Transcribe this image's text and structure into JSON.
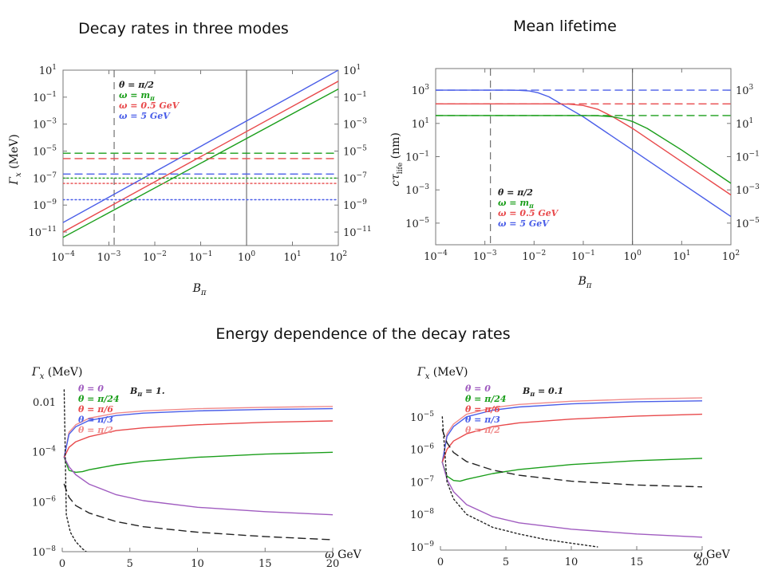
{
  "headings": {
    "decay": "Decay rates in three modes",
    "lifetime": "Mean lifetime",
    "energy": "Energy dependence of the decay rates"
  },
  "colors": {
    "green": "#1a9e1a",
    "red": "#e8494b",
    "blue": "#4a5ee8",
    "purple": "#a05cc0",
    "pink": "#f08a8a",
    "black": "#222222",
    "gray": "#777777"
  },
  "chart_data": [
    {
      "id": "decay",
      "type": "line",
      "scale": {
        "x": "log",
        "y": "log"
      },
      "xlabel": "B_π",
      "ylabel": "Γ_x (MeV)",
      "xlim": [
        0.0001,
        100
      ],
      "ylim": [
        1e-12,
        10
      ],
      "xticks": [
        {
          "v": 0.0001,
          "m": "10",
          "e": "−4"
        },
        {
          "v": 0.001,
          "m": "10",
          "e": "−3"
        },
        {
          "v": 0.01,
          "m": "10",
          "e": "−2"
        },
        {
          "v": 0.1,
          "m": "10",
          "e": "−1"
        },
        {
          "v": 1,
          "m": "10",
          "e": "0"
        },
        {
          "v": 10,
          "m": "10",
          "e": "1"
        },
        {
          "v": 100,
          "m": "10",
          "e": "2"
        }
      ],
      "yticks": [
        {
          "v": 10,
          "m": "10",
          "e": "1"
        },
        {
          "v": 0.1,
          "m": "10",
          "e": "−1"
        },
        {
          "v": 0.001,
          "m": "10",
          "e": "−3"
        },
        {
          "v": 1e-05,
          "m": "10",
          "e": "−5"
        },
        {
          "v": 1e-07,
          "m": "10",
          "e": "−7"
        },
        {
          "v": 1e-09,
          "m": "10",
          "e": "−9"
        },
        {
          "v": 1e-11,
          "m": "10",
          "e": "−11"
        }
      ],
      "right_ticks": true,
      "vlines": [
        {
          "x": 0.0013,
          "style": "dashed"
        },
        {
          "x": 1,
          "style": "solid"
        }
      ],
      "legend": [
        {
          "text": "θ = π/2",
          "color": "black"
        },
        {
          "text": "ω = m",
          "sub": "π",
          "color": "green"
        },
        {
          "text": "ω = 0.5 GeV",
          "color": "red"
        },
        {
          "text": "ω = 5 GeV",
          "color": "blue"
        }
      ],
      "series": [
        {
          "color": "blue",
          "style": "solid",
          "x": [
            0.0001,
            100
          ],
          "y": [
            5e-11,
            10
          ]
        },
        {
          "color": "red",
          "style": "solid",
          "x": [
            0.0001,
            100
          ],
          "y": [
            1e-11,
            1.5
          ]
        },
        {
          "color": "green",
          "style": "solid",
          "x": [
            0.0001,
            100
          ],
          "y": [
            4e-12,
            0.4
          ]
        },
        {
          "color": "green",
          "style": "dashed",
          "x": [
            0.0001,
            100
          ],
          "y": [
            7e-06,
            7e-06
          ]
        },
        {
          "color": "red",
          "style": "dashed",
          "x": [
            0.0001,
            100
          ],
          "y": [
            2.8e-06,
            2.8e-06
          ]
        },
        {
          "color": "blue",
          "style": "dashed",
          "x": [
            0.0001,
            100
          ],
          "y": [
            2e-07,
            2e-07
          ]
        },
        {
          "color": "green",
          "style": "dotted",
          "x": [
            0.0001,
            100
          ],
          "y": [
            1e-07,
            1e-07
          ]
        },
        {
          "color": "red",
          "style": "dotted",
          "x": [
            0.0001,
            100
          ],
          "y": [
            4e-08,
            4e-08
          ]
        },
        {
          "color": "blue",
          "style": "dotted",
          "x": [
            0.0001,
            100
          ],
          "y": [
            2.5e-09,
            2.5e-09
          ]
        }
      ]
    },
    {
      "id": "lifetime",
      "type": "line",
      "scale": {
        "x": "log",
        "y": "log"
      },
      "xlabel": "B_π",
      "ylabel": "cτ_life (nm)",
      "xlim": [
        0.0001,
        100
      ],
      "ylim": [
        5e-07,
        20000
      ],
      "xticks": [
        {
          "v": 0.0001,
          "m": "10",
          "e": "−4"
        },
        {
          "v": 0.001,
          "m": "10",
          "e": "−3"
        },
        {
          "v": 0.01,
          "m": "10",
          "e": "−2"
        },
        {
          "v": 0.1,
          "m": "10",
          "e": "−1"
        },
        {
          "v": 1,
          "m": "10",
          "e": "0"
        },
        {
          "v": 10,
          "m": "10",
          "e": "1"
        },
        {
          "v": 100,
          "m": "10",
          "e": "2"
        }
      ],
      "yticks": [
        {
          "v": 1000,
          "m": "10",
          "e": "3"
        },
        {
          "v": 10,
          "m": "10",
          "e": "1"
        },
        {
          "v": 0.1,
          "m": "10",
          "e": "−1"
        },
        {
          "v": 0.001,
          "m": "10",
          "e": "−3"
        },
        {
          "v": 1e-05,
          "m": "10",
          "e": "−5"
        }
      ],
      "right_ticks": true,
      "vlines": [
        {
          "x": 0.0013,
          "style": "dashed"
        },
        {
          "x": 1,
          "style": "solid"
        }
      ],
      "legend": [
        {
          "text": "θ = π/2",
          "color": "black"
        },
        {
          "text": "ω = m",
          "sub": "π",
          "color": "green"
        },
        {
          "text": "ω = 0.5 GeV",
          "color": "red"
        },
        {
          "text": "ω = 5 GeV",
          "color": "blue"
        }
      ],
      "series": [
        {
          "color": "blue",
          "style": "dashed",
          "x": [
            0.0001,
            100
          ],
          "y": [
            1000,
            1000
          ]
        },
        {
          "color": "red",
          "style": "dashed",
          "x": [
            0.0001,
            100
          ],
          "y": [
            150,
            150
          ]
        },
        {
          "color": "green",
          "style": "dashed",
          "x": [
            0.0001,
            100
          ],
          "y": [
            30,
            30
          ]
        },
        {
          "color": "blue",
          "style": "solid",
          "x": [
            0.0001,
            0.003,
            0.005,
            0.008,
            0.012,
            0.02,
            0.04,
            0.1,
            1,
            10,
            100
          ],
          "y": [
            1000,
            1000,
            980,
            900,
            700,
            400,
            120,
            25,
            0.25,
            0.0025,
            2.5e-05
          ]
        },
        {
          "color": "red",
          "style": "solid",
          "x": [
            0.0001,
            0.02,
            0.05,
            0.1,
            0.2,
            0.4,
            1,
            10,
            100
          ],
          "y": [
            150,
            150,
            145,
            120,
            70,
            25,
            5,
            0.05,
            0.0005
          ]
        },
        {
          "color": "green",
          "style": "solid",
          "x": [
            0.0001,
            0.1,
            0.2,
            0.4,
            0.7,
            1,
            2,
            10,
            100
          ],
          "y": [
            30,
            30,
            29,
            25,
            18,
            13,
            5,
            0.25,
            0.0025
          ]
        }
      ]
    },
    {
      "id": "energy-b1",
      "type": "line",
      "scale": {
        "x": "linear",
        "y": "log"
      },
      "xlabel": "ω GeV",
      "ylabel": "Γ_x (MeV)",
      "xlim": [
        0,
        20
      ],
      "ylim": [
        1e-08,
        0.05
      ],
      "xticks": [
        {
          "v": 0,
          "m": "0"
        },
        {
          "v": 5,
          "m": "5"
        },
        {
          "v": 10,
          "m": "10"
        },
        {
          "v": 15,
          "m": "15"
        },
        {
          "v": 20,
          "m": "20"
        }
      ],
      "yticks": [
        {
          "v": 0.01,
          "m": "0.01"
        },
        {
          "v": 0.0001,
          "m": "10",
          "e": "−4"
        },
        {
          "v": 1e-06,
          "m": "10",
          "e": "−6"
        },
        {
          "v": 1e-08,
          "m": "10",
          "e": "−8"
        }
      ],
      "right_ticks": false,
      "vlines": [],
      "annotation": "B_π = 1.",
      "legend": [
        {
          "text": "θ = 0",
          "color": "purple"
        },
        {
          "text": "θ = π/24",
          "color": "green"
        },
        {
          "text": "θ = π/6",
          "color": "red"
        },
        {
          "text": "θ = π/3",
          "color": "blue"
        },
        {
          "text": "θ = π/2",
          "color": "pink"
        }
      ],
      "series": [
        {
          "color": "pink",
          "style": "solid",
          "x": [
            0.14,
            0.5,
            1,
            2,
            4,
            6,
            10,
            15,
            20
          ],
          "y": [
            6e-05,
            0.0006,
            0.0012,
            0.0022,
            0.0035,
            0.0043,
            0.0053,
            0.006,
            0.0065
          ]
        },
        {
          "color": "blue",
          "style": "solid",
          "x": [
            0.14,
            0.5,
            1,
            2,
            4,
            6,
            10,
            15,
            20
          ],
          "y": [
            6e-05,
            0.0005,
            0.001,
            0.0018,
            0.0028,
            0.0035,
            0.0043,
            0.0049,
            0.0053
          ]
        },
        {
          "color": "red",
          "style": "solid",
          "x": [
            0.14,
            0.5,
            1,
            2,
            4,
            6,
            10,
            15,
            20
          ],
          "y": [
            6e-05,
            0.00015,
            0.00025,
            0.0004,
            0.0007,
            0.0009,
            0.0012,
            0.0015,
            0.0017
          ]
        },
        {
          "color": "green",
          "style": "solid",
          "x": [
            0.14,
            0.5,
            1,
            1.5,
            2,
            4,
            6,
            10,
            15,
            20
          ],
          "y": [
            6e-05,
            1.8e-05,
            1.5e-05,
            1.6e-05,
            1.9e-05,
            3e-05,
            4.1e-05,
            6e-05,
            8e-05,
            9.5e-05
          ]
        },
        {
          "color": "purple",
          "style": "solid",
          "x": [
            0.14,
            0.5,
            1,
            2,
            4,
            6,
            10,
            15,
            20
          ],
          "y": [
            6e-05,
            2.5e-05,
            1.2e-05,
            5e-06,
            1.9e-06,
            1.1e-06,
            6e-07,
            4e-07,
            3e-07
          ]
        },
        {
          "color": "black",
          "style": "dashed",
          "x": [
            0.14,
            0.5,
            1,
            2,
            4,
            6,
            10,
            15,
            20
          ],
          "y": [
            5e-06,
            1.5e-06,
            7e-07,
            3.5e-07,
            1.6e-07,
            1e-07,
            6e-08,
            4e-08,
            3e-08
          ]
        },
        {
          "color": "black",
          "style": "dotted",
          "x": [
            0.14,
            0.3,
            0.6,
            1,
            1.5,
            2
          ],
          "y": [
            0.03,
            3e-07,
            6e-08,
            2.5e-08,
            1.3e-08,
            8e-09
          ]
        }
      ]
    },
    {
      "id": "energy-b01",
      "type": "line",
      "scale": {
        "x": "linear",
        "y": "log"
      },
      "xlabel": "ω GeV",
      "ylabel": "Γ_x (MeV)",
      "xlim": [
        0,
        20
      ],
      "ylim": [
        8e-10,
        0.0001
      ],
      "xticks": [
        {
          "v": 0,
          "m": "0"
        },
        {
          "v": 5,
          "m": "5"
        },
        {
          "v": 10,
          "m": "10"
        },
        {
          "v": 15,
          "m": "15"
        },
        {
          "v": 20,
          "m": "20"
        }
      ],
      "yticks": [
        {
          "v": 1e-05,
          "m": "10",
          "e": "−5"
        },
        {
          "v": 1e-06,
          "m": "10",
          "e": "−6"
        },
        {
          "v": 1e-07,
          "m": "10",
          "e": "−7"
        },
        {
          "v": 1e-08,
          "m": "10",
          "e": "−8"
        },
        {
          "v": 1e-09,
          "m": "10",
          "e": "−9"
        }
      ],
      "right_ticks": false,
      "vlines": [],
      "annotation": "B_π = 0.1",
      "legend": [
        {
          "text": "θ = 0",
          "color": "purple"
        },
        {
          "text": "θ = π/24",
          "color": "green"
        },
        {
          "text": "θ = π/6",
          "color": "red"
        },
        {
          "text": "θ = π/3",
          "color": "blue"
        },
        {
          "text": "θ = π/2",
          "color": "pink"
        }
      ],
      "series": [
        {
          "color": "pink",
          "style": "solid",
          "x": [
            0.14,
            0.5,
            1,
            2,
            4,
            6,
            10,
            15,
            20
          ],
          "y": [
            4e-07,
            3e-06,
            6e-06,
            1.2e-05,
            1.9e-05,
            2.4e-05,
            3e-05,
            3.5e-05,
            3.8e-05
          ]
        },
        {
          "color": "blue",
          "style": "solid",
          "x": [
            0.14,
            0.5,
            1,
            2,
            4,
            6,
            10,
            15,
            20
          ],
          "y": [
            4e-07,
            2.5e-06,
            5e-06,
            1e-05,
            1.6e-05,
            2e-05,
            2.5e-05,
            2.9e-05,
            3.1e-05
          ]
        },
        {
          "color": "red",
          "style": "solid",
          "x": [
            0.14,
            0.5,
            1,
            2,
            4,
            6,
            10,
            15,
            20
          ],
          "y": [
            4e-07,
            1e-06,
            1.8e-06,
            3e-06,
            5e-06,
            6.5e-06,
            8.5e-06,
            1.05e-05,
            1.2e-05
          ]
        },
        {
          "color": "green",
          "style": "solid",
          "x": [
            0.14,
            0.5,
            1,
            1.5,
            2,
            4,
            6,
            10,
            15,
            20
          ],
          "y": [
            4e-07,
            1.5e-07,
            1.1e-07,
            1.05e-07,
            1.2e-07,
            1.8e-07,
            2.4e-07,
            3.4e-07,
            4.5e-07,
            5.3e-07
          ]
        },
        {
          "color": "purple",
          "style": "solid",
          "x": [
            0.14,
            0.5,
            1,
            2,
            4,
            6,
            10,
            15,
            20
          ],
          "y": [
            4e-07,
            1.2e-07,
            5e-08,
            2e-08,
            8.5e-09,
            5.5e-09,
            3.5e-09,
            2.5e-09,
            2e-09
          ]
        },
        {
          "color": "black",
          "style": "dashed",
          "x": [
            0.14,
            0.5,
            1,
            2,
            4,
            6,
            10,
            15,
            20
          ],
          "y": [
            4e-06,
            1.6e-06,
            8e-07,
            4.2e-07,
            2.3e-07,
            1.6e-07,
            1.05e-07,
            8e-08,
            7e-08
          ]
        },
        {
          "color": "black",
          "style": "dotted",
          "x": [
            0.14,
            0.5,
            1,
            2,
            4,
            6,
            8,
            10,
            12
          ],
          "y": [
            1e-05,
            1e-07,
            3e-08,
            1e-08,
            4e-09,
            2.5e-09,
            1.7e-09,
            1.3e-09,
            1e-09
          ]
        }
      ]
    }
  ]
}
